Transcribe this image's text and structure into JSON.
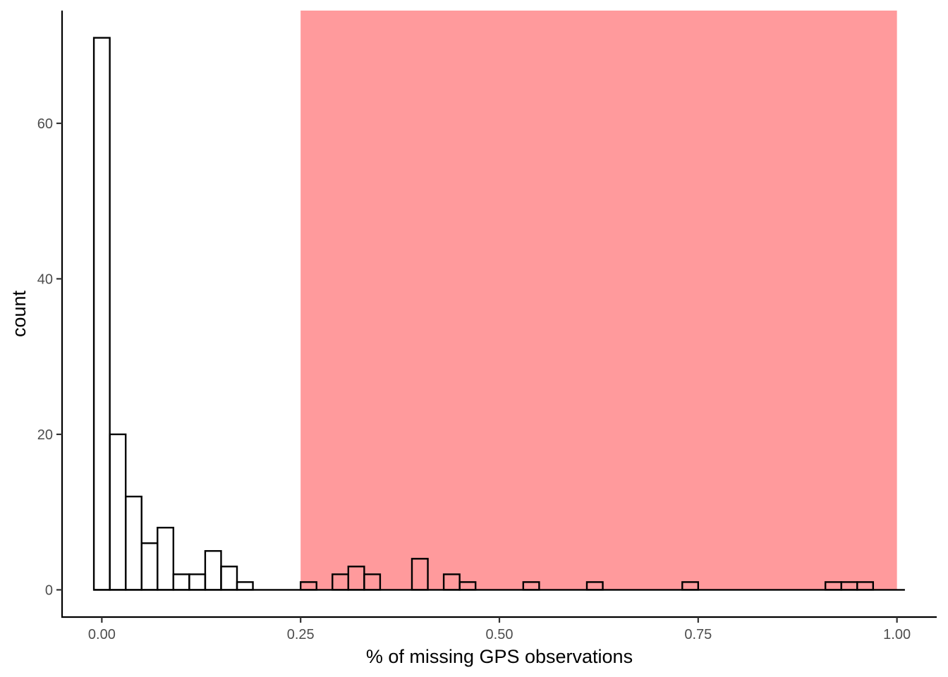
{
  "chart_data": {
    "type": "bar",
    "xlabel": "% of missing GPS observations",
    "ylabel": "count",
    "xlim": [
      -0.05,
      1.05
    ],
    "ylim": [
      -3.5,
      74.5
    ],
    "x_ticks": [
      0.0,
      0.25,
      0.5,
      0.75,
      1.0
    ],
    "x_tick_labels": [
      "0.00",
      "0.25",
      "0.50",
      "0.75",
      "1.00"
    ],
    "y_ticks": [
      0,
      20,
      40,
      60
    ],
    "y_tick_labels": [
      "0",
      "20",
      "40",
      "60"
    ],
    "grid": false,
    "bin_width": 0.02,
    "bins_x_center": [
      0.0,
      0.02,
      0.04,
      0.06,
      0.08,
      0.1,
      0.12,
      0.14,
      0.16,
      0.18,
      0.2,
      0.22,
      0.24,
      0.26,
      0.28,
      0.3,
      0.32,
      0.34,
      0.36,
      0.38,
      0.4,
      0.42,
      0.44,
      0.46,
      0.48,
      0.5,
      0.52,
      0.54,
      0.56,
      0.58,
      0.6,
      0.62,
      0.64,
      0.66,
      0.68,
      0.7,
      0.72,
      0.74,
      0.76,
      0.78,
      0.8,
      0.82,
      0.84,
      0.86,
      0.88,
      0.9,
      0.92,
      0.94,
      0.96,
      0.98,
      1.0
    ],
    "values": [
      71,
      20,
      12,
      6,
      8,
      2,
      2,
      5,
      3,
      1,
      0,
      0,
      0,
      1,
      0,
      2,
      3,
      2,
      0,
      0,
      4,
      0,
      2,
      1,
      0,
      0,
      0,
      1,
      0,
      0,
      0,
      1,
      0,
      0,
      0,
      0,
      0,
      1,
      0,
      0,
      0,
      0,
      0,
      0,
      0,
      0,
      1,
      1,
      1,
      0,
      0
    ],
    "highlight_region": {
      "xmin": 0.25,
      "xmax": 1.0,
      "color": "#ff9a9c"
    },
    "bar_fill": "#ffffff",
    "bar_outline": "#000000"
  }
}
